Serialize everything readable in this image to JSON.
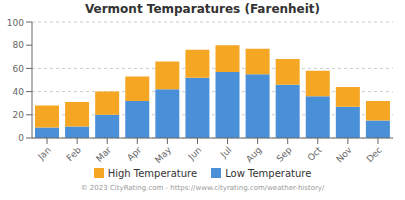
{
  "chart_data": {
    "type": "bar",
    "title": "Vermont Temparatures (Farenheit)",
    "categories": [
      "Jan",
      "Feb",
      "Mar",
      "Apr",
      "May",
      "Jun",
      "Jul",
      "Aug",
      "Sep",
      "Oct",
      "Nov",
      "Dec"
    ],
    "series": [
      {
        "name": "Low Temperature",
        "color": "#4a90d9",
        "values": [
          9,
          10,
          20,
          32,
          42,
          52,
          57,
          55,
          46,
          36,
          27,
          15
        ]
      },
      {
        "name": "High Temperature",
        "color": "#f5a623",
        "values": [
          19,
          21,
          20,
          21,
          24,
          24,
          23,
          22,
          22,
          22,
          17,
          17
        ]
      }
    ],
    "stacked": true,
    "ylim": [
      0,
      100
    ],
    "yticks": [
      0,
      20,
      40,
      60,
      80,
      100
    ],
    "grid": true,
    "annotations": [
      "© 2023 CityRating.com - https://www.cityrating.com/weather-history/"
    ]
  }
}
